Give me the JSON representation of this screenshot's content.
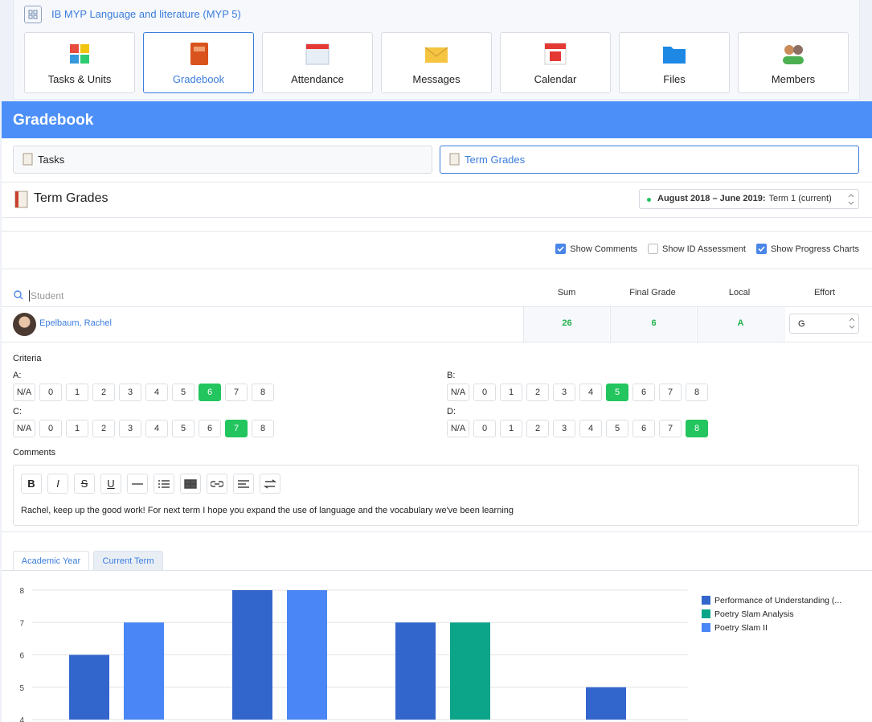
{
  "course": {
    "title": "IB MYP Language and literature (MYP 5)"
  },
  "nav": [
    "Tasks & Units",
    "Gradebook",
    "Attendance",
    "Messages",
    "Calendar",
    "Files",
    "Members"
  ],
  "header": {
    "title": "Gradebook"
  },
  "tabs": [
    "Tasks",
    "Term Grades"
  ],
  "section": {
    "title": "Term Grades",
    "period": "August 2018 – June 2019:",
    "term": "Term 1 (current)"
  },
  "options": [
    {
      "label": "Show Comments",
      "checked": true
    },
    {
      "label": "Show ID Assessment",
      "checked": false
    },
    {
      "label": "Show Progress Charts",
      "checked": true
    }
  ],
  "table": {
    "search_placeholder": "Student",
    "columns": [
      "Sum",
      "Final Grade",
      "Local",
      "Effort"
    ],
    "rows": [
      {
        "student": "Epelbaum, Rachel",
        "sum": 26,
        "final_grade": 6,
        "local": "A",
        "effort": "G"
      }
    ]
  },
  "criteria": {
    "title": "Criteria",
    "scale": [
      "N/A",
      0,
      1,
      2,
      3,
      4,
      5,
      6,
      7,
      8
    ],
    "items": [
      {
        "label": "A:",
        "selected": 6
      },
      {
        "label": "B:",
        "selected": 5
      },
      {
        "label": "C:",
        "selected": 7
      },
      {
        "label": "D:",
        "selected": 8
      }
    ]
  },
  "comments": {
    "title": "Comments",
    "toolbar": [
      "B",
      "I",
      "S",
      "U"
    ],
    "text": "Rachel, keep up the good work! For next term I hope you expand the use of language and the vocabulary we've been learning"
  },
  "chart_tabs": [
    "Academic Year",
    "Current Term"
  ],
  "chart_data": {
    "type": "bar",
    "categories": [
      null,
      null,
      null,
      null
    ],
    "series": [
      {
        "name": "Performance of Understanding (...",
        "color": "#3366cc",
        "values": [
          6,
          8,
          7,
          5
        ]
      },
      {
        "name": "Poetry Slam Analysis",
        "color": "#0ca58a",
        "values": [
          null,
          null,
          7,
          null
        ]
      },
      {
        "name": "Poetry Slam II",
        "color": "#4a86f5",
        "values": [
          7,
          8,
          null,
          null
        ]
      }
    ],
    "ylim": [
      4,
      8
    ],
    "yticks": [
      4,
      5,
      6,
      7,
      8
    ],
    "grid": true,
    "legend": "right"
  }
}
